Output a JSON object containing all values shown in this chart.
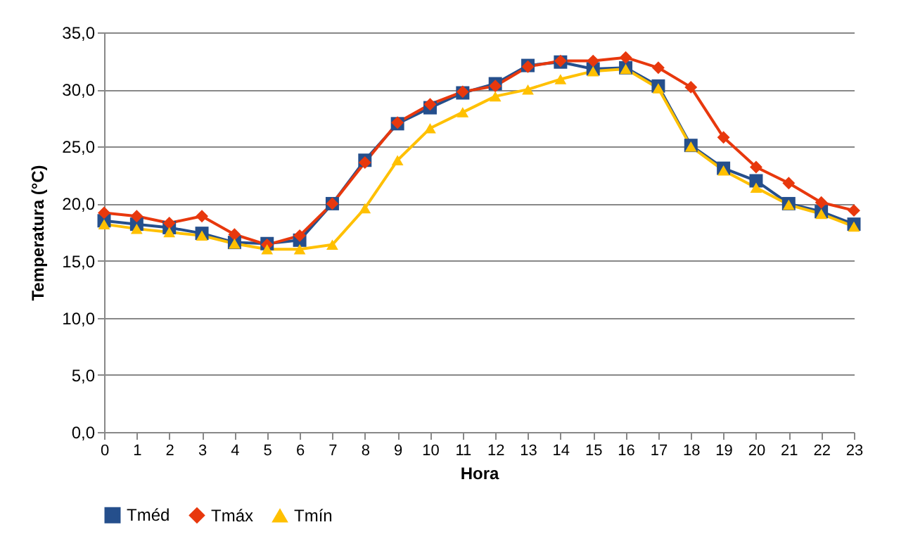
{
  "chart_data": {
    "type": "line",
    "xlabel": "Hora",
    "ylabel": "Temperatura (°C)",
    "x": [
      0,
      1,
      2,
      3,
      4,
      5,
      6,
      7,
      8,
      9,
      10,
      11,
      12,
      13,
      14,
      15,
      16,
      17,
      18,
      19,
      20,
      21,
      22,
      23
    ],
    "xlim": [
      0,
      23
    ],
    "xticks": [
      0,
      1,
      2,
      3,
      4,
      5,
      6,
      7,
      8,
      9,
      10,
      11,
      12,
      13,
      14,
      15,
      16,
      17,
      18,
      19,
      20,
      21,
      22,
      23
    ],
    "ylim": [
      0,
      35
    ],
    "yticks": [
      {
        "value": 0,
        "label": "0,0"
      },
      {
        "value": 5,
        "label": "5,0"
      },
      {
        "value": 10,
        "label": "10,0"
      },
      {
        "value": 15,
        "label": "15,0"
      },
      {
        "value": 20,
        "label": "20,0"
      },
      {
        "value": 25,
        "label": "25,0"
      },
      {
        "value": 30,
        "label": "30,0"
      },
      {
        "value": 35,
        "label": "35,0"
      }
    ],
    "grid": "y",
    "legend": "bottom",
    "line_style": "solid",
    "series": [
      {
        "name": "Tméd",
        "color": "#254f8c",
        "marker": "square",
        "values": [
          18.5,
          18.2,
          17.9,
          17.4,
          16.6,
          16.5,
          16.8,
          20.0,
          23.8,
          27.0,
          28.4,
          29.7,
          30.5,
          32.1,
          32.4,
          31.8,
          31.9,
          30.3,
          25.1,
          23.1,
          22.0,
          20.0,
          19.3,
          18.2
        ]
      },
      {
        "name": "Tmáx",
        "color": "#e8380d",
        "marker": "diamond",
        "values": [
          19.2,
          18.9,
          18.3,
          18.9,
          17.3,
          16.4,
          17.2,
          20.0,
          23.6,
          27.1,
          28.7,
          29.8,
          30.3,
          32.0,
          32.5,
          32.5,
          32.8,
          31.9,
          30.2,
          25.8,
          23.2,
          21.8,
          20.1,
          19.4
        ]
      },
      {
        "name": "Tmín",
        "color": "#ffc000",
        "marker": "triangle",
        "values": [
          18.2,
          17.8,
          17.5,
          17.2,
          16.5,
          16.0,
          16.0,
          16.4,
          19.6,
          23.8,
          26.6,
          28.0,
          29.4,
          30.0,
          30.9,
          31.6,
          31.8,
          30.1,
          25.0,
          22.9,
          21.4,
          19.9,
          19.1,
          18.0
        ]
      }
    ]
  }
}
